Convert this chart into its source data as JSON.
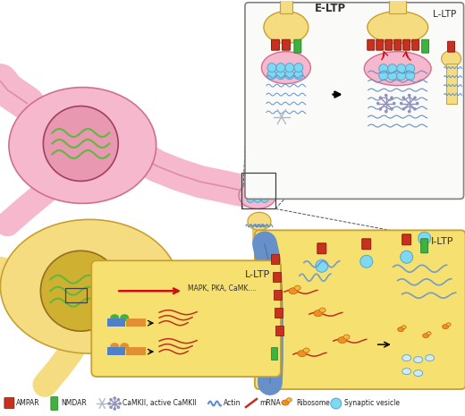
{
  "bg_color": "#ffffff",
  "pink": "#f5b8cc",
  "pink_edge": "#d07090",
  "pink_nucleus": "#e898b0",
  "yellow": "#f5dc80",
  "yellow_light": "#f8e8a0",
  "yellow_edge": "#c8a030",
  "yellow_nucleus": "#c8a030",
  "dna_color": "#60b840",
  "vesicle_fill": "#80d8f0",
  "vesicle_edge": "#50a8d0",
  "ampar_color": "#c83020",
  "ampar_edge": "#801000",
  "nmdar_color": "#40b040",
  "nmdar_edge": "#208020",
  "actin_color": "#6090d0",
  "mrna_color": "#c03020",
  "ribo_color": "#f09020",
  "ribo_edge": "#c06010",
  "camkii_color": "#b0b8c8",
  "active_camkii_color": "#9090b8",
  "box_fill": "#fafaf8",
  "box_edge": "#808080",
  "lltp_fill": "#f5e070",
  "lltp_edge": "#c8a030",
  "prom_color": "#5080c8",
  "gene_color": "#e09030",
  "eltp_label": "E-LTP",
  "lltp_label": "L-LTP",
  "iltp_label": "I-LTP",
  "mapk_text": "MAPK, PKA, CaMK....",
  "legend_texts": [
    "AMPAR",
    "NMDAR",
    "CaMKII, active CaMKII",
    "Actin",
    "mRNA",
    "Ribosome",
    "Synaptic vesicle"
  ]
}
